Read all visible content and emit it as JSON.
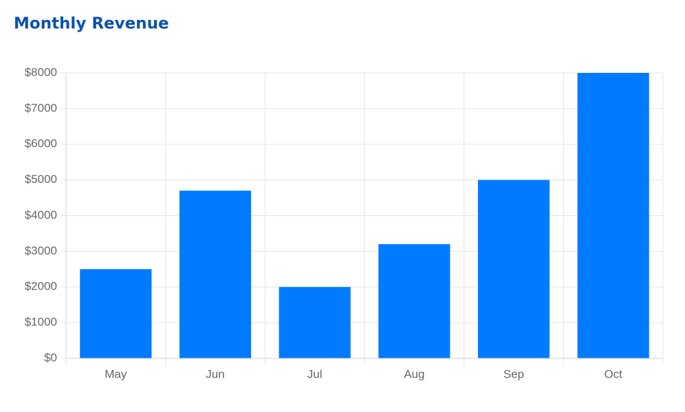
{
  "chart_data": {
    "type": "bar",
    "title": "Monthly Revenue",
    "categories": [
      "May",
      "Jun",
      "Jul",
      "Aug",
      "Sep",
      "Oct"
    ],
    "values": [
      2500,
      4700,
      2000,
      3200,
      5000,
      8000
    ],
    "color": "#007bff",
    "ylim": [
      0,
      8000
    ],
    "yticks": [
      {
        "value": 0,
        "label": "$0"
      },
      {
        "value": 1000,
        "label": "$1000"
      },
      {
        "value": 2000,
        "label": "$2000"
      },
      {
        "value": 3000,
        "label": "$3000"
      },
      {
        "value": 4000,
        "label": "$4000"
      },
      {
        "value": 5000,
        "label": "$5000"
      },
      {
        "value": 6000,
        "label": "$6000"
      },
      {
        "value": 7000,
        "label": "$7000"
      },
      {
        "value": 8000,
        "label": "$8000"
      }
    ],
    "grid": true
  }
}
